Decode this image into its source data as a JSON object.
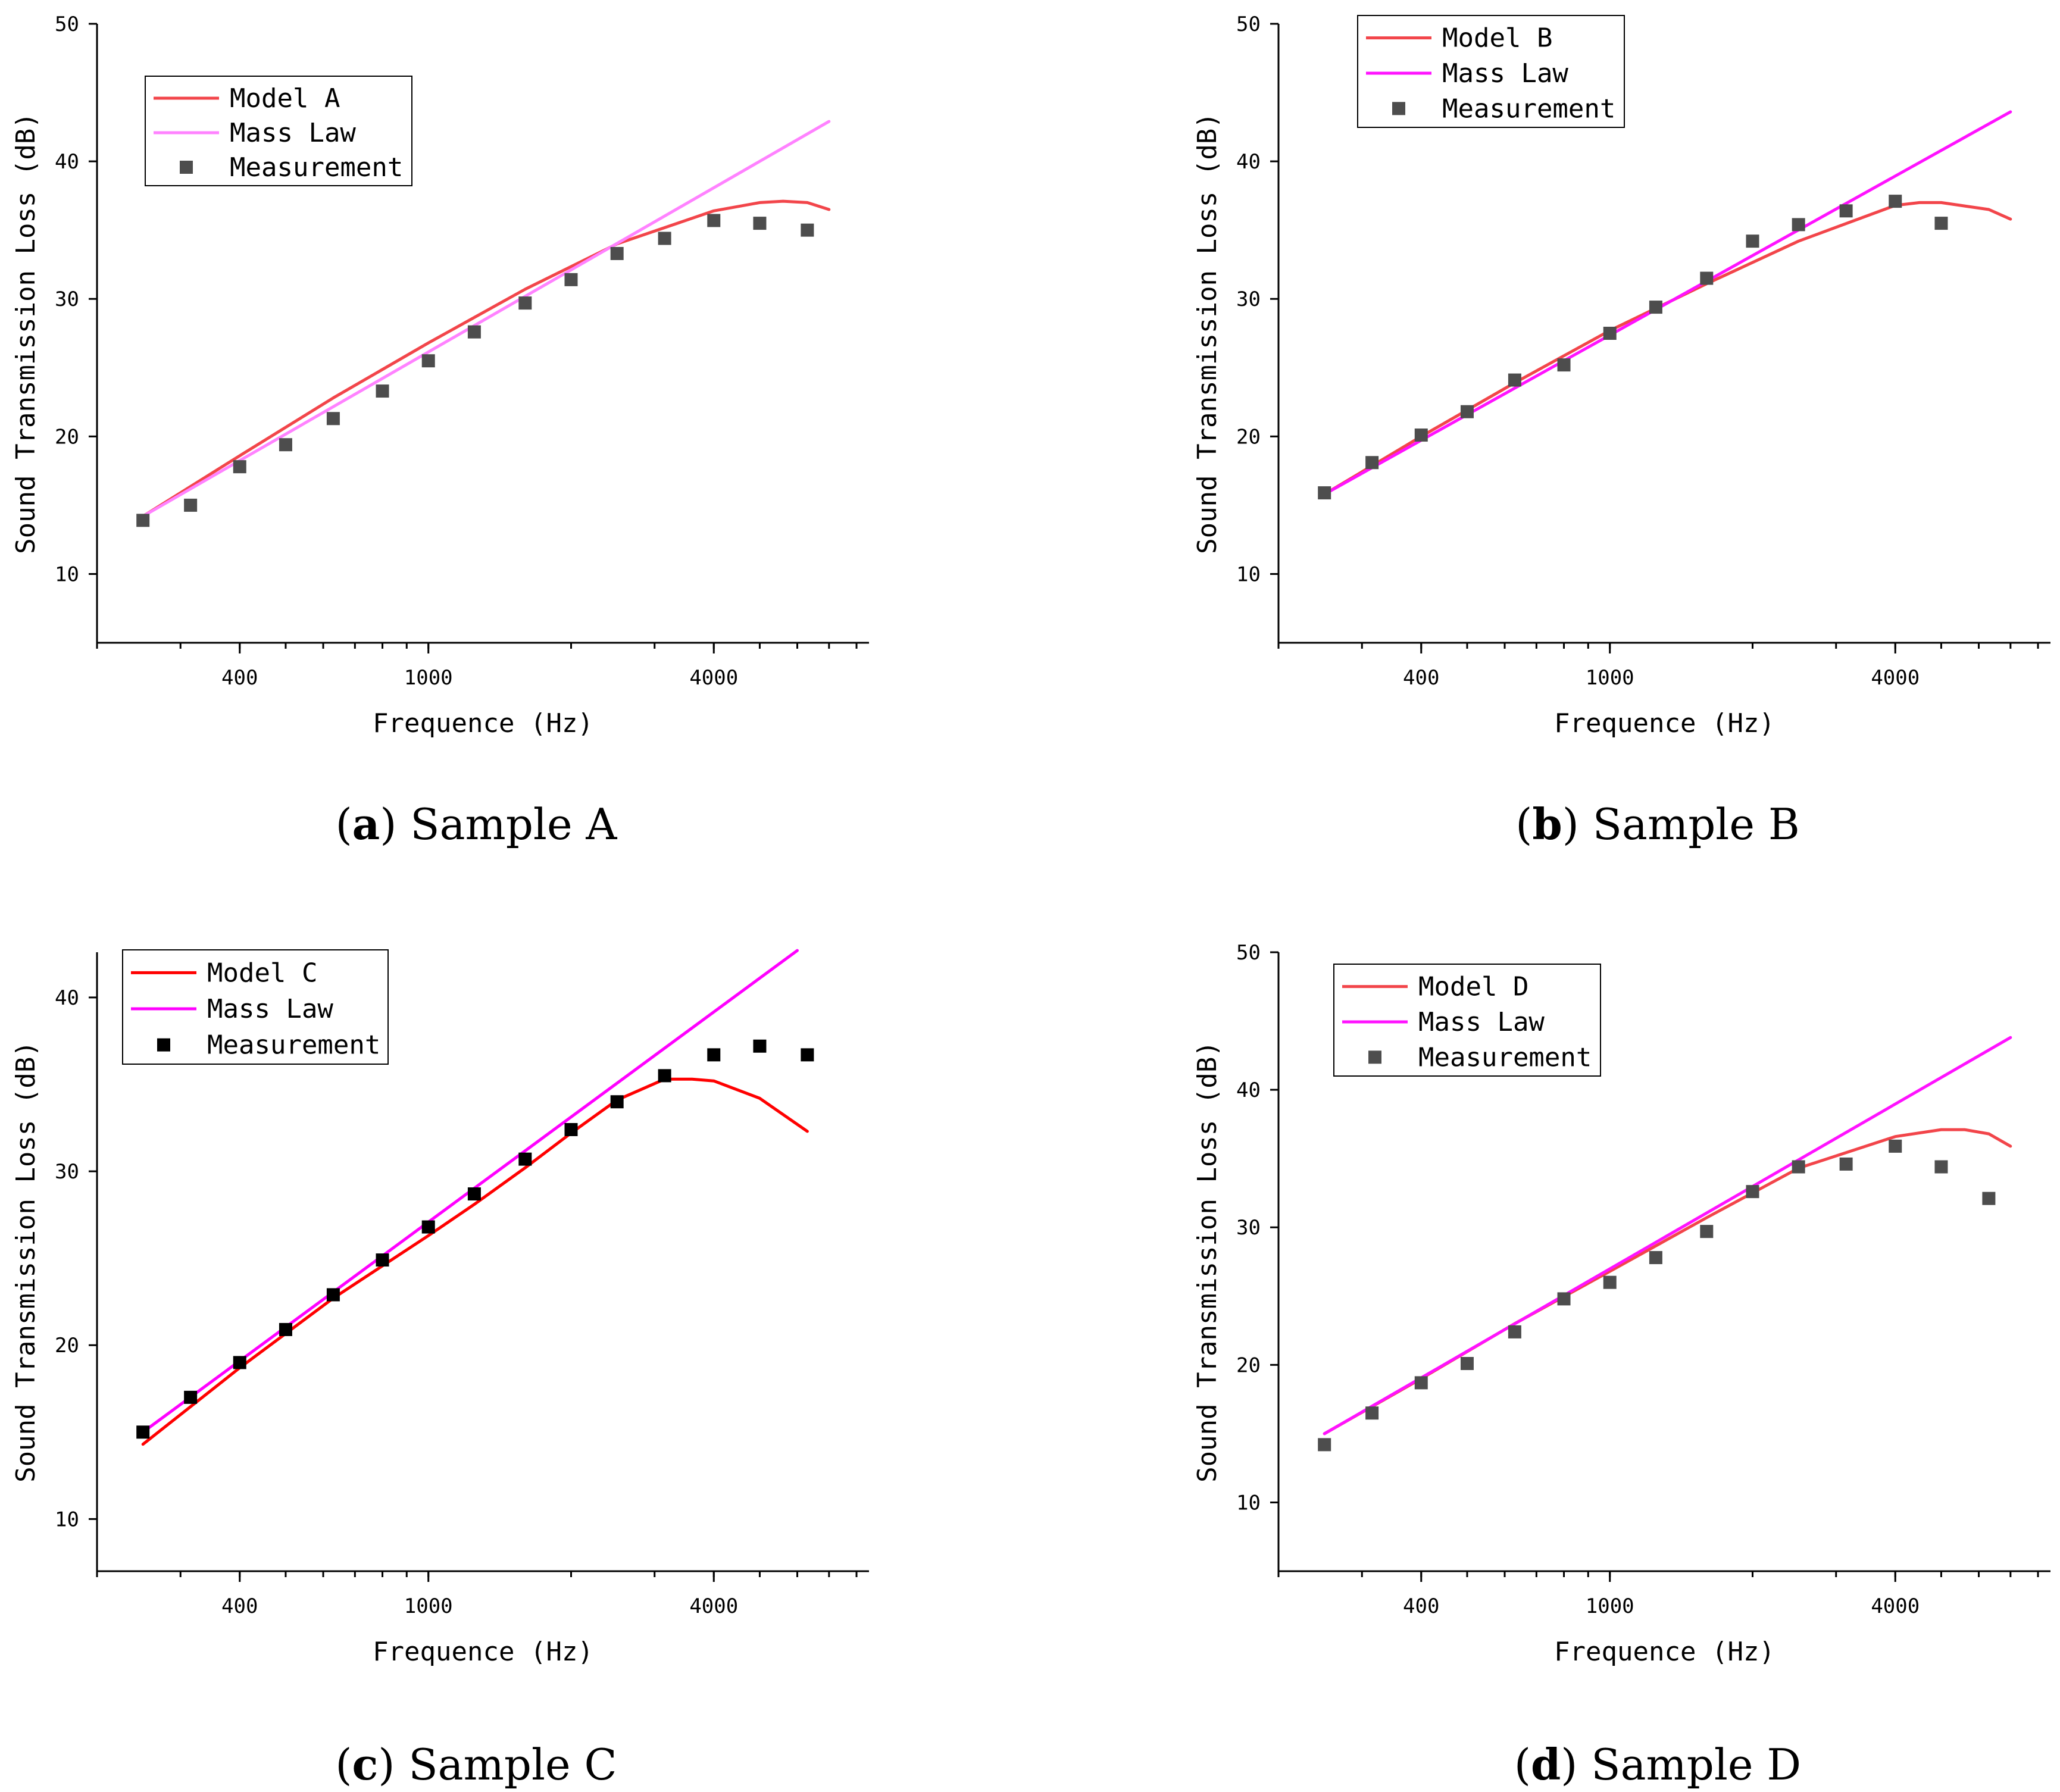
{
  "colors": {
    "axis": "#000000"
  },
  "chart_data": [
    {
      "type": "line",
      "caption_letter": "a",
      "caption": "Sample A",
      "xlabel": "Frequence (Hz)",
      "ylabel": "Sound Transmission Loss (dB)",
      "xscale": "log",
      "xlim": [
        200,
        8500
      ],
      "ylim": [
        5,
        50
      ],
      "xticks": [
        400,
        1000,
        4000
      ],
      "yticks": [
        10,
        20,
        30,
        40,
        50
      ],
      "legend_position": "top-left",
      "series": [
        {
          "name": "Model A",
          "kind": "line",
          "color": "#f2454a",
          "x": [
            250,
            400,
            630,
            1000,
            1600,
            2500,
            4000,
            5000,
            5600,
            6300,
            7000
          ],
          "y": [
            14.2,
            18.6,
            22.8,
            26.8,
            30.7,
            34.0,
            36.4,
            37.0,
            37.1,
            37.0,
            36.5
          ]
        },
        {
          "name": "Mass Law",
          "kind": "line",
          "color": "#ff82ff",
          "x": [
            250,
            7000
          ],
          "y": [
            14.2,
            42.9
          ]
        },
        {
          "name": "Measurement",
          "kind": "scatter",
          "color": "#4d4d4d",
          "x": [
            250,
            315,
            400,
            500,
            630,
            800,
            1000,
            1250,
            1600,
            2000,
            2500,
            3150,
            4000,
            5000,
            6300
          ],
          "y": [
            13.9,
            15.0,
            17.8,
            19.4,
            21.3,
            23.3,
            25.5,
            27.6,
            29.7,
            31.4,
            33.3,
            34.4,
            35.7,
            35.5,
            35.0
          ]
        }
      ]
    },
    {
      "type": "line",
      "caption_letter": "b",
      "caption": "Sample B",
      "xlabel": "Frequence (Hz)",
      "ylabel": "Sound Transmission Loss (dB)",
      "xscale": "log",
      "xlim": [
        200,
        8500
      ],
      "ylim": [
        5,
        50
      ],
      "xticks": [
        400,
        1000,
        4000
      ],
      "yticks": [
        10,
        20,
        30,
        40,
        50
      ],
      "legend_position": "top-left",
      "series": [
        {
          "name": "Model B",
          "kind": "line",
          "color": "#f2454a",
          "x": [
            250,
            400,
            630,
            1000,
            1600,
            2500,
            4000,
            4500,
            5000,
            6300,
            7000
          ],
          "y": [
            15.8,
            20.0,
            23.9,
            27.7,
            31.1,
            34.2,
            36.8,
            37.0,
            37.0,
            36.5,
            35.8
          ]
        },
        {
          "name": "Mass Law",
          "kind": "line",
          "color": "#ff12ff",
          "x": [
            250,
            7000
          ],
          "y": [
            15.8,
            43.6
          ]
        },
        {
          "name": "Measurement",
          "kind": "scatter",
          "color": "#4d4d4d",
          "x": [
            250,
            315,
            400,
            500,
            630,
            800,
            1000,
            1250,
            1600,
            2000,
            2500,
            3150,
            4000,
            5000
          ],
          "y": [
            15.9,
            18.1,
            20.1,
            21.8,
            24.1,
            25.2,
            27.5,
            29.4,
            31.5,
            34.2,
            35.4,
            36.4,
            37.1,
            35.5
          ]
        }
      ]
    },
    {
      "type": "line",
      "caption_letter": "c",
      "caption": "Sample C",
      "xlabel": "Frequence (Hz)",
      "ylabel": "Sound Transmission Loss (dB)",
      "xscale": "log",
      "xlim": [
        200,
        8500
      ],
      "ylim": [
        7,
        42.6
      ],
      "xticks": [
        400,
        1000,
        4000
      ],
      "yticks": [
        10,
        20,
        30,
        40
      ],
      "legend_position": "top-left",
      "series": [
        {
          "name": "Model C",
          "kind": "line",
          "color": "#ff0000",
          "x": [
            250,
            400,
            630,
            1000,
            1250,
            1600,
            2000,
            2500,
            3150,
            3600,
            4000,
            5000,
            6300
          ],
          "y": [
            14.3,
            18.7,
            22.7,
            26.3,
            28.1,
            30.2,
            32.2,
            34.1,
            35.3,
            35.3,
            35.2,
            34.2,
            32.3
          ]
        },
        {
          "name": "Mass Law",
          "kind": "line",
          "color": "#ff00ff",
          "x": [
            250,
            6000
          ],
          "y": [
            15.0,
            42.7
          ]
        },
        {
          "name": "Measurement",
          "kind": "scatter",
          "color": "#000000",
          "x": [
            250,
            315,
            400,
            500,
            630,
            800,
            1000,
            1250,
            1600,
            2000,
            2500,
            3150,
            4000,
            5000,
            6300
          ],
          "y": [
            15.0,
            17.0,
            19.0,
            20.9,
            22.9,
            24.9,
            26.8,
            28.7,
            30.7,
            32.4,
            34.0,
            35.5,
            36.7,
            37.2,
            36.7
          ]
        }
      ]
    },
    {
      "type": "line",
      "caption_letter": "d",
      "caption": "Sample D",
      "xlabel": "Frequence (Hz)",
      "ylabel": "Sound Transmission Loss (dB)",
      "xscale": "log",
      "xlim": [
        200,
        8500
      ],
      "ylim": [
        5,
        50
      ],
      "xticks": [
        400,
        1000,
        4000
      ],
      "yticks": [
        10,
        20,
        30,
        40,
        50
      ],
      "legend_position": "top-left",
      "series": [
        {
          "name": "Model D",
          "kind": "line",
          "color": "#f2454a",
          "x": [
            250,
            400,
            630,
            1000,
            1600,
            2500,
            4000,
            5000,
            5600,
            6300,
            7000
          ],
          "y": [
            15.0,
            19.0,
            23.0,
            26.8,
            30.7,
            34.3,
            36.6,
            37.1,
            37.1,
            36.8,
            35.9
          ]
        },
        {
          "name": "Mass Law",
          "kind": "line",
          "color": "#ff12ff",
          "x": [
            250,
            7000
          ],
          "y": [
            15.0,
            43.8
          ]
        },
        {
          "name": "Measurement",
          "kind": "scatter",
          "color": "#4d4d4d",
          "x": [
            250,
            315,
            400,
            500,
            630,
            800,
            1000,
            1250,
            1600,
            2000,
            2500,
            3150,
            4000,
            5000,
            6300
          ],
          "y": [
            14.2,
            16.5,
            18.7,
            20.1,
            22.4,
            24.8,
            26.0,
            27.8,
            29.7,
            32.6,
            34.4,
            34.6,
            35.9,
            34.4,
            32.1
          ]
        }
      ]
    }
  ]
}
